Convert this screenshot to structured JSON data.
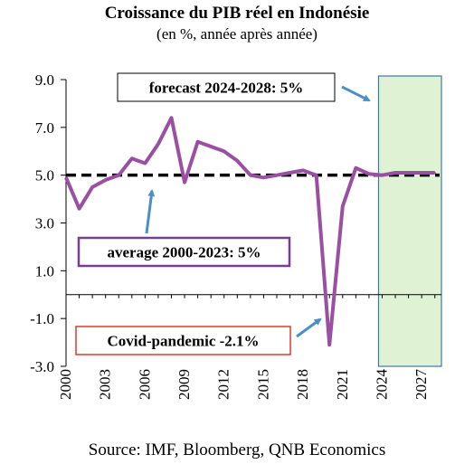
{
  "title": "Croissance du PIB réel en Indonésie",
  "subtitle": "(en %, année après année)",
  "source": "Source: IMF, Bloomberg, QNB Economics",
  "colors": {
    "series": "#9B4FA3",
    "average_line": "#000000",
    "forecast_fill": "#DFF2D4",
    "forecast_border": "#3F79A8",
    "arrow": "#4A8FC7",
    "covid_box": "#E03A2E",
    "average_box": "#7B3B8E",
    "forecast_box": "#000000"
  },
  "annotations": {
    "forecast": "forecast 2024-2028: 5%",
    "average": "average 2000-2023: 5%",
    "covid": "Covid-pandemic -2.1%"
  },
  "chart_data": {
    "type": "line",
    "ylim": [
      -3.0,
      9.0
    ],
    "yticks": [
      "9.0",
      "7.0",
      "5.0",
      "3.0",
      "1.0",
      "-1.0",
      "-3.0"
    ],
    "ytick_values": [
      9,
      7,
      5,
      3,
      1,
      -1,
      -3
    ],
    "xticks": [
      "2000",
      "2003",
      "2006",
      "2009",
      "2012",
      "2015",
      "2018",
      "2021",
      "2024",
      "2027"
    ],
    "xtick_values": [
      2000,
      2003,
      2006,
      2009,
      2012,
      2015,
      2018,
      2021,
      2024,
      2027
    ],
    "xlim": [
      2000,
      2028.5
    ],
    "grid": false,
    "forecast_range": [
      2024,
      2028.5
    ],
    "average_value": 5.0,
    "series": [
      {
        "x": [
          2000,
          2001,
          2002,
          2003,
          2004,
          2005,
          2006,
          2007,
          2008,
          2009,
          2010,
          2011,
          2012,
          2013,
          2014,
          2015,
          2016,
          2017,
          2018,
          2019,
          2020,
          2021,
          2022,
          2023,
          2024,
          2025,
          2026,
          2027,
          2028
        ],
        "values": [
          4.9,
          3.6,
          4.5,
          4.8,
          5.0,
          5.7,
          5.5,
          6.3,
          7.4,
          4.7,
          6.4,
          6.2,
          6.0,
          5.6,
          5.0,
          4.9,
          5.0,
          5.1,
          5.2,
          5.0,
          -2.1,
          3.7,
          5.3,
          5.05,
          5.0,
          5.1,
          5.1,
          5.1,
          5.1
        ]
      }
    ]
  }
}
